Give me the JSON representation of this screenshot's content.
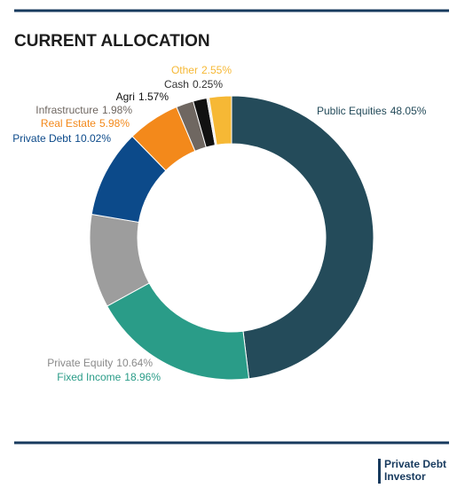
{
  "chart_data": {
    "type": "donut",
    "title": "CURRENT ALLOCATION",
    "categories": [
      "Public Equities",
      "Fixed Income",
      "Private Equity",
      "Private Debt",
      "Real Estate",
      "Infrastructure",
      "Agri",
      "Cash",
      "Other"
    ],
    "values": [
      48.05,
      18.96,
      10.64,
      10.02,
      5.98,
      1.98,
      1.57,
      0.25,
      2.55
    ],
    "value_labels": [
      "48.05%",
      "18.96%",
      "10.64%",
      "10.02%",
      "5.98%",
      "1.98%",
      "1.57%",
      "0.25%",
      "2.55%"
    ],
    "colors": [
      "#244b5a",
      "#2a9c88",
      "#9d9d9d",
      "#0c4a8a",
      "#f3891b",
      "#6f6761",
      "#111111",
      "#e6e6e6",
      "#f6b835"
    ],
    "label_colors": [
      "#244b5a",
      "#2a9c88",
      "#8a8a8a",
      "#0c4a8a",
      "#f3891b",
      "#6f6761",
      "#111111",
      "#333333",
      "#f6b835"
    ]
  },
  "logo": [
    "Private Debt",
    "Investor"
  ]
}
